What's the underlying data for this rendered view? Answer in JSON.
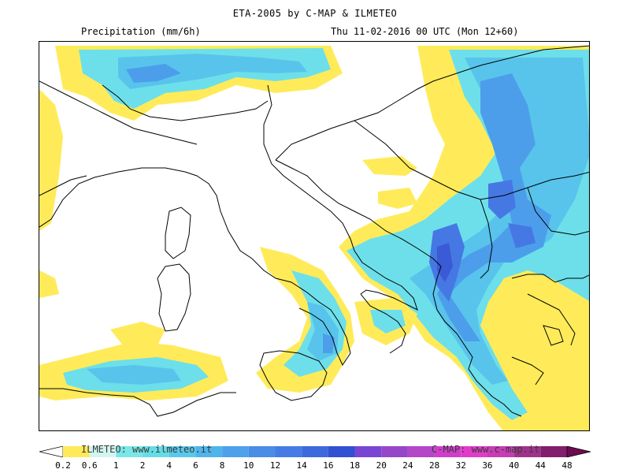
{
  "header": {
    "title": "ETA-2005 by C-MAP & ILMETEO",
    "parameter": "Precipitation (mm/6h)",
    "valid_time": "Thu 11-02-2016 00 UTC (Mon 12+60)"
  },
  "legend": {
    "credit_left": "ILMETEO: www.ilmeteo.it",
    "credit_right": "C-MAP: www.c-map.it",
    "labels": [
      "0.2",
      "0.6",
      "1",
      "2",
      "4",
      "6",
      "8",
      "10",
      "12",
      "14",
      "16",
      "18",
      "20",
      "24",
      "28",
      "32",
      "36",
      "40",
      "44",
      "48"
    ],
    "colors": [
      "#ffffff",
      "#ffeb5a",
      "#d2f5f0",
      "#7ae6e6",
      "#66dce6",
      "#5ac8eb",
      "#50b4eb",
      "#4ea0eb",
      "#4a8ce6",
      "#467be6",
      "#3c69dc",
      "#3250d2",
      "#7846d2",
      "#9646c8",
      "#b446c8",
      "#d23ccd",
      "#e03cc8",
      "#c83cb4",
      "#a0328c",
      "#821e6e",
      "#6e0a50"
    ]
  },
  "map_colors": {
    "land_outline": "#000000",
    "frame": "#000000",
    "yellow": "#ffeb5a",
    "light_cyan": "#9cf0f0",
    "cyan": "#6ddfea",
    "light_blue": "#58c4ec",
    "blue": "#4c9eea",
    "dark_blue": "#4678e4",
    "deep_blue": "#3a5ad6"
  }
}
